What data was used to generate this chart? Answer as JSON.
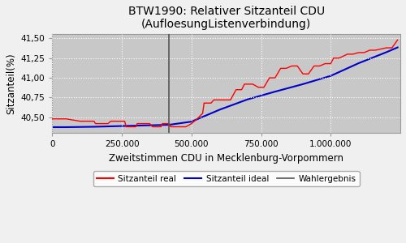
{
  "title": "BTW1990: Relativer Sitzanteil CDU\n(AufloesungListenverbindung)",
  "xlabel": "Zweitstimmen CDU in Mecklenburg-Vorpommern",
  "ylabel": "Sitzanteil(%)",
  "xlim": [
    0,
    1250000
  ],
  "ylim": [
    40.3,
    41.55
  ],
  "yticks": [
    40.5,
    40.75,
    41.0,
    41.25,
    41.5
  ],
  "xticks": [
    0,
    250000,
    500000,
    750000,
    1000000
  ],
  "xtick_labels": [
    "0",
    "250.000",
    "500.000",
    "750.000",
    "1.000.000"
  ],
  "vline_x": 420000,
  "bg_color": "#c8c8c8",
  "fig_color": "#f0f0f0",
  "grid_color": "#ffffff",
  "real_color": "#ff0000",
  "ideal_color": "#0000cc",
  "wahlergebnis_color": "#555555",
  "legend_labels": [
    "Sitzanteil real",
    "Sitzanteil ideal",
    "Wahlergebnis"
  ],
  "real_x": [
    0,
    50000,
    100000,
    150000,
    155000,
    200000,
    210000,
    260000,
    265000,
    300000,
    305000,
    350000,
    360000,
    390000,
    395000,
    420000,
    425000,
    450000,
    480000,
    500000,
    520000,
    540000,
    545000,
    570000,
    580000,
    600000,
    620000,
    640000,
    660000,
    680000,
    690000,
    720000,
    740000,
    760000,
    780000,
    800000,
    820000,
    840000,
    860000,
    880000,
    900000,
    920000,
    940000,
    960000,
    980000,
    1000000,
    1010000,
    1030000,
    1060000,
    1080000,
    1100000,
    1120000,
    1140000,
    1160000,
    1200000,
    1220000,
    1240000
  ],
  "real_y": [
    40.48,
    40.48,
    40.45,
    40.45,
    40.42,
    40.42,
    40.45,
    40.45,
    40.38,
    40.38,
    40.42,
    40.42,
    40.38,
    40.38,
    40.42,
    40.42,
    40.38,
    40.38,
    40.38,
    40.42,
    40.48,
    40.55,
    40.68,
    40.68,
    40.72,
    40.72,
    40.72,
    40.72,
    40.85,
    40.85,
    40.92,
    40.92,
    40.88,
    40.88,
    41.0,
    41.0,
    41.12,
    41.12,
    41.15,
    41.15,
    41.05,
    41.05,
    41.15,
    41.15,
    41.18,
    41.18,
    41.25,
    41.25,
    41.3,
    41.3,
    41.32,
    41.32,
    41.35,
    41.35,
    41.38,
    41.38,
    41.48
  ],
  "ideal_x": [
    0,
    50000,
    150000,
    420000,
    500000,
    600000,
    700000,
    800000,
    900000,
    1000000,
    1100000,
    1200000,
    1240000
  ],
  "ideal_y": [
    40.375,
    40.375,
    40.38,
    40.405,
    40.445,
    40.595,
    40.725,
    40.825,
    40.92,
    41.025,
    41.185,
    41.325,
    41.385
  ]
}
